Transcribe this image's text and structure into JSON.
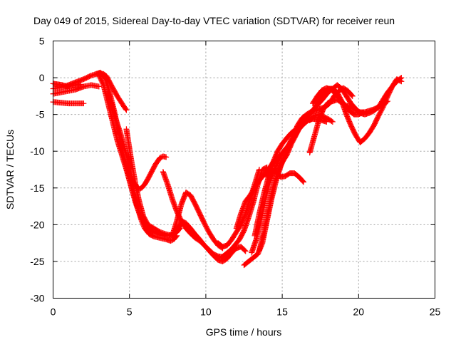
{
  "chart_data": {
    "type": "scatter",
    "title": "Day 049 of 2015, Sidereal Day-to-day VTEC variation (SDTVAR) for receiver reun",
    "xlabel": "GPS time / hours",
    "ylabel": "SDTVAR / TECUs",
    "xlim": [
      0,
      25
    ],
    "ylim": [
      -30,
      5
    ],
    "xticks": [
      "0",
      "5",
      "10",
      "15",
      "20",
      "25"
    ],
    "yticks": [
      "5",
      "0",
      "-5",
      "-10",
      "-15",
      "-20",
      "-25",
      "-30"
    ],
    "xtick_values": [
      0,
      5,
      10,
      15,
      20,
      25
    ],
    "ytick_values": [
      5,
      0,
      -5,
      -10,
      -15,
      -20,
      -25,
      -30
    ],
    "grid": true,
    "marker": "plus",
    "color": "#ff0000",
    "series": [
      {
        "x": [
          0.0,
          0.5,
          1.0,
          1.5,
          2.0
        ],
        "y": [
          -3.3,
          -3.4,
          -3.5,
          -3.5,
          -3.5
        ]
      },
      {
        "x": [
          0.0,
          0.3,
          0.6,
          0.9,
          1.2,
          1.5,
          1.8
        ],
        "y": [
          -0.8,
          -0.9,
          -1.0,
          -1.2,
          -1.1,
          -1.0,
          -0.9
        ]
      },
      {
        "x": [
          0.0,
          0.5,
          1.0,
          1.5,
          2.0,
          2.5,
          3.0
        ],
        "y": [
          -2.2,
          -2.0,
          -1.8,
          -1.6,
          -1.2,
          -1.0,
          -1.2
        ]
      },
      {
        "x": [
          0.0,
          0.5,
          1.0,
          1.5,
          2.0,
          2.5,
          3.0,
          3.3,
          3.5,
          3.8,
          4.2,
          4.6,
          4.8
        ],
        "y": [
          -1.5,
          -1.3,
          -1.0,
          -0.6,
          -0.2,
          0.3,
          0.6,
          0.5,
          0.2,
          -1.0,
          -2.5,
          -3.8,
          -4.4
        ]
      },
      {
        "x": [
          2.8,
          3.1,
          3.4,
          3.7,
          4.0,
          4.3,
          4.6,
          4.9,
          5.1,
          5.4,
          5.6,
          5.8,
          6.0,
          6.2,
          6.4,
          6.7,
          7.0,
          7.2,
          7.4
        ],
        "y": [
          0.5,
          0.7,
          0.0,
          -2.0,
          -4.5,
          -7.5,
          -10.5,
          -12.8,
          -13.8,
          -14.6,
          -15.2,
          -15.0,
          -14.5,
          -13.8,
          -13.0,
          -11.8,
          -10.9,
          -10.7,
          -10.8
        ]
      },
      {
        "x": [
          3.0,
          3.3,
          3.6,
          3.9,
          4.2,
          4.5,
          4.8,
          5.0,
          5.2,
          5.4,
          5.6,
          5.8,
          6.0,
          6.3,
          6.6,
          7.0,
          7.4,
          7.7,
          7.9,
          8.1
        ],
        "y": [
          0.4,
          -1.0,
          -3.5,
          -6.0,
          -8.5,
          -10.5,
          -12.5,
          -14.0,
          -15.5,
          -17.0,
          -18.2,
          -19.5,
          -20.5,
          -21.3,
          -21.6,
          -21.8,
          -22.0,
          -22.2,
          -22.0,
          -21.5
        ]
      },
      {
        "x": [
          3.6,
          4.0,
          4.4,
          4.8,
          5.1,
          5.3,
          5.5,
          5.8,
          6.1,
          6.4,
          6.8,
          7.2,
          7.6,
          7.9,
          8.2,
          8.4
        ],
        "y": [
          -2.0,
          -5.0,
          -7.5,
          -10.5,
          -13.0,
          -15.5,
          -17.5,
          -19.2,
          -20.2,
          -20.8,
          -21.2,
          -21.5,
          -21.5,
          -21.2,
          -20.5,
          -19.8
        ]
      },
      {
        "x": [
          4.8,
          5.1,
          5.4,
          5.6,
          5.9,
          6.2,
          6.6,
          7.0,
          7.4,
          7.8,
          8.1,
          8.3
        ],
        "y": [
          -7.0,
          -11.0,
          -14.5,
          -16.5,
          -18.8,
          -20.0,
          -20.5,
          -21.0,
          -21.3,
          -21.5,
          -21.0,
          -20.5
        ]
      },
      {
        "x": [
          7.2,
          7.5,
          7.8,
          8.1,
          8.4,
          8.7,
          9.0,
          9.3,
          9.6,
          9.9,
          10.2,
          10.5,
          10.8,
          11.1,
          11.4,
          11.7
        ],
        "y": [
          -12.8,
          -14.5,
          -16.5,
          -18.2,
          -19.5,
          -20.5,
          -21.2,
          -21.8,
          -22.2,
          -22.8,
          -23.4,
          -24.0,
          -24.3,
          -24.4,
          -24.2,
          -23.8
        ]
      },
      {
        "x": [
          7.8,
          8.1,
          8.4,
          8.7,
          9.0,
          9.3,
          9.6,
          9.9,
          10.2,
          10.5,
          10.8,
          11.1
        ],
        "y": [
          -21.5,
          -19.5,
          -17.2,
          -15.6,
          -16.0,
          -17.2,
          -18.5,
          -19.8,
          -21.0,
          -22.0,
          -22.8,
          -23.2
        ]
      },
      {
        "x": [
          8.1,
          8.4,
          8.7,
          9.0,
          9.3,
          9.6,
          9.9,
          10.2,
          10.5,
          10.8,
          11.1,
          11.4,
          11.7,
          12.0,
          12.3,
          12.6
        ],
        "y": [
          -21.0,
          -19.5,
          -19.8,
          -20.5,
          -21.3,
          -22.0,
          -22.8,
          -23.5,
          -24.2,
          -24.8,
          -25.0,
          -24.6,
          -23.8,
          -23.2,
          -23.0,
          -23.6
        ]
      },
      {
        "x": [
          10.8,
          11.1,
          11.4,
          11.7,
          12.0,
          12.3,
          12.6,
          12.9,
          13.2,
          13.5
        ],
        "y": [
          -22.5,
          -23.0,
          -22.8,
          -22.0,
          -21.0,
          -20.0,
          -18.5,
          -16.5,
          -14.5,
          -12.5
        ]
      },
      {
        "x": [
          11.0,
          11.3,
          11.6,
          11.9,
          12.2,
          12.5,
          12.8,
          13.1,
          13.4,
          13.7,
          14.0
        ],
        "y": [
          -24.5,
          -24.0,
          -23.5,
          -22.8,
          -22.0,
          -20.8,
          -19.0,
          -17.0,
          -14.5,
          -12.5,
          -12.2
        ]
      },
      {
        "x": [
          12.0,
          12.3,
          12.6,
          12.9,
          13.2,
          13.5,
          13.8,
          14.1,
          14.4,
          14.7,
          15.0
        ],
        "y": [
          -20.5,
          -18.5,
          -16.8,
          -16.0,
          -15.0,
          -14.0,
          -13.2,
          -12.5,
          -11.5,
          -11.0,
          -10.2
        ]
      },
      {
        "x": [
          12.5,
          12.8,
          13.1,
          13.4,
          13.7,
          14.0,
          14.3,
          14.6,
          14.9,
          15.2,
          15.5,
          15.8,
          16.1,
          16.4,
          16.7,
          17.0,
          17.3,
          17.6,
          17.9
        ],
        "y": [
          -25.5,
          -25.0,
          -24.5,
          -24.0,
          -22.5,
          -19.5,
          -16.5,
          -14.0,
          -12.0,
          -10.5,
          -9.0,
          -8.0,
          -7.0,
          -6.3,
          -5.8,
          -5.6,
          -5.7,
          -5.8,
          -6.0
        ]
      },
      {
        "x": [
          13.0,
          13.3,
          13.6,
          13.9,
          14.2,
          14.5,
          14.8,
          15.1,
          15.4,
          15.7,
          16.0,
          16.3,
          16.6,
          16.9,
          17.2,
          17.5,
          17.8,
          18.1,
          18.4,
          18.7,
          19.0,
          19.3,
          19.6
        ],
        "y": [
          -23.8,
          -22.0,
          -19.5,
          -16.5,
          -14.0,
          -12.5,
          -11.0,
          -10.0,
          -9.2,
          -8.0,
          -6.5,
          -5.5,
          -5.0,
          -4.6,
          -4.5,
          -4.2,
          -4.0,
          -3.5,
          -2.5,
          -1.8,
          -1.4,
          -1.8,
          -2.5
        ]
      },
      {
        "x": [
          13.5,
          13.8,
          14.1,
          14.4,
          14.7,
          15.0,
          15.3,
          15.6,
          15.9,
          16.2,
          16.5,
          16.8,
          17.1,
          17.4,
          17.7,
          18.0,
          18.3,
          18.6,
          18.9,
          19.2,
          19.5,
          19.8,
          20.1,
          20.4,
          20.7,
          21.0,
          21.3,
          21.6,
          21.9,
          22.2,
          22.5,
          22.8
        ],
        "y": [
          -23.5,
          -21.0,
          -18.0,
          -15.0,
          -13.0,
          -11.5,
          -10.5,
          -9.0,
          -7.8,
          -6.5,
          -5.5,
          -5.0,
          -4.2,
          -3.2,
          -2.2,
          -1.5,
          -1.5,
          -2.0,
          -3.2,
          -5.0,
          -6.5,
          -7.8,
          -8.8,
          -8.3,
          -7.5,
          -6.5,
          -5.2,
          -4.0,
          -2.5,
          -1.2,
          -0.2,
          -0.5
        ]
      },
      {
        "x": [
          13.2,
          13.5,
          13.8,
          14.1,
          14.4,
          14.7,
          15.0,
          15.3,
          15.6,
          15.9,
          16.2,
          16.5,
          16.8,
          17.1,
          17.4,
          17.7,
          18.0,
          18.3,
          18.6,
          18.9,
          19.2,
          19.5,
          19.8,
          20.1,
          20.4,
          20.7,
          21.0,
          21.3,
          21.6,
          21.9,
          22.2,
          22.5,
          22.8
        ],
        "y": [
          -21.5,
          -18.5,
          -15.8,
          -13.5,
          -11.5,
          -10.0,
          -9.0,
          -8.2,
          -7.5,
          -7.0,
          -6.5,
          -5.8,
          -5.0,
          -4.2,
          -3.5,
          -2.8,
          -2.0,
          -1.5,
          -1.0,
          -1.5,
          -2.5,
          -3.5,
          -4.2,
          -4.8,
          -5.0,
          -4.8,
          -4.5,
          -4.0,
          -3.0,
          -2.0,
          -1.2,
          -0.5,
          0.0
        ]
      },
      {
        "x": [
          14.0,
          14.3,
          14.6,
          14.9,
          15.2,
          15.5,
          15.8,
          16.1,
          16.4
        ],
        "y": [
          -13.5,
          -12.6,
          -12.8,
          -13.5,
          -13.4,
          -13.0,
          -13.0,
          -13.5,
          -14.2
        ]
      },
      {
        "x": [
          16.8,
          17.1,
          17.4,
          17.7,
          18.0,
          18.3,
          18.6,
          18.9,
          19.2,
          19.5,
          19.8,
          20.1,
          20.4,
          20.7,
          21.0,
          21.3,
          21.6,
          21.9
        ],
        "y": [
          -10.2,
          -8.0,
          -5.8,
          -4.2,
          -3.4,
          -3.2,
          -3.0,
          -3.4,
          -3.8,
          -4.0,
          -4.4,
          -4.7,
          -4.7,
          -4.5,
          -4.3,
          -4.0,
          -3.6,
          -3.2
        ]
      },
      {
        "x": [
          16.8,
          17.1,
          17.4,
          17.7,
          18.0,
          18.3
        ],
        "y": [
          -5.8,
          -5.2,
          -5.0,
          -5.3,
          -5.6,
          -6.0
        ]
      },
      {
        "x": [
          17.0,
          17.3,
          17.6,
          17.9,
          18.2,
          18.5,
          18.8,
          19.1,
          19.4,
          19.7,
          20.0,
          20.3
        ],
        "y": [
          -3.5,
          -2.5,
          -1.7,
          -1.4,
          -1.6,
          -2.2,
          -3.0,
          -3.8,
          -4.5,
          -5.0,
          -5.0,
          -4.7
        ]
      }
    ]
  }
}
